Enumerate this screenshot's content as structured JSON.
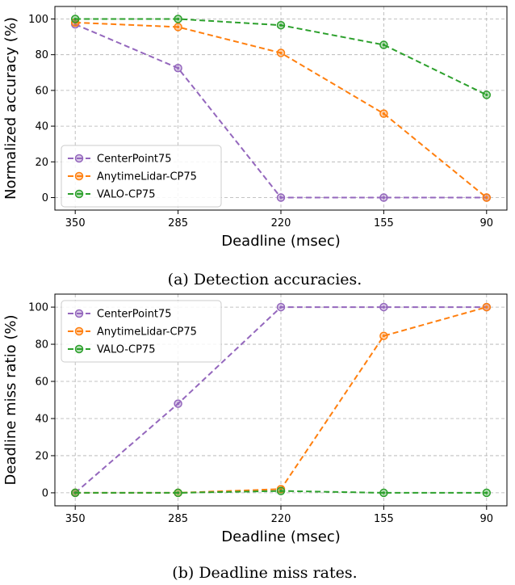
{
  "chart_data": [
    {
      "type": "line",
      "caption": "(a) Detection accuracies.",
      "categories": [
        "350",
        "285",
        "220",
        "155",
        "90"
      ],
      "xlabel": "Deadline (msec)",
      "ylabel": "Normalized accuracy (%)",
      "ylim": [
        -7,
        107
      ],
      "yticks": [
        0,
        20,
        40,
        60,
        80,
        100
      ],
      "grid": true,
      "legend_position": "lower-left",
      "series": [
        {
          "name": "CenterPoint75",
          "color": "#9467bd",
          "values": [
            97,
            72.5,
            0,
            0,
            0
          ]
        },
        {
          "name": "AnytimeLidar-CP75",
          "color": "#ff7f0e",
          "values": [
            98,
            95.5,
            81,
            47,
            0
          ]
        },
        {
          "name": "VALO-CP75",
          "color": "#2ca02c",
          "values": [
            100,
            100,
            96.5,
            85.5,
            57.5
          ]
        }
      ]
    },
    {
      "type": "line",
      "caption": "(b) Deadline miss rates.",
      "categories": [
        "350",
        "285",
        "220",
        "155",
        "90"
      ],
      "xlabel": "Deadline (msec)",
      "ylabel": "Deadline miss ratio (%)",
      "ylim": [
        -7,
        107
      ],
      "yticks": [
        0,
        20,
        40,
        60,
        80,
        100
      ],
      "grid": true,
      "legend_position": "upper-left",
      "series": [
        {
          "name": "CenterPoint75",
          "color": "#9467bd",
          "values": [
            0,
            48,
            100,
            100,
            100
          ]
        },
        {
          "name": "AnytimeLidar-CP75",
          "color": "#ff7f0e",
          "values": [
            0,
            0,
            2,
            84.5,
            100
          ]
        },
        {
          "name": "VALO-CP75",
          "color": "#2ca02c",
          "values": [
            0,
            0,
            1,
            0,
            0
          ]
        }
      ]
    }
  ]
}
